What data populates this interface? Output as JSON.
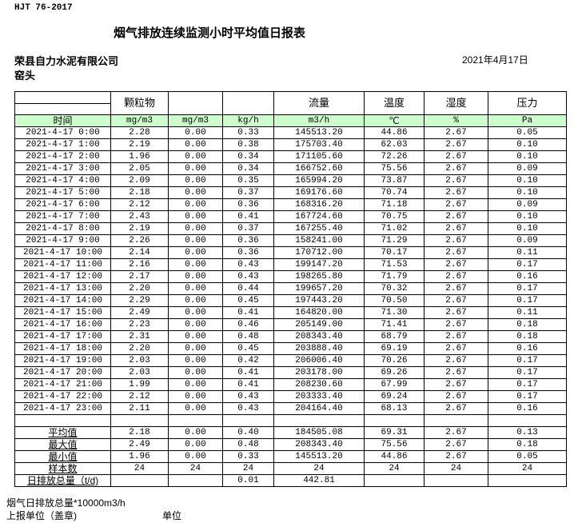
{
  "header": {
    "standard": "HJT  76-2017",
    "title": "烟气排放连续监测小时平均值日报表",
    "company": "荣县自力水泥有限公司",
    "date": "2021年4月17日",
    "location": "窑头"
  },
  "table": {
    "header_row1": [
      "",
      "颗粒物",
      "",
      "",
      "流量",
      "温度",
      "湿度",
      "压力"
    ],
    "header_row2": [
      "时间",
      "mg/m3",
      "mg/m3",
      "kg/h",
      "m3/h",
      "℃",
      "%",
      "Pa"
    ],
    "rows": [
      [
        "2021-4-17 0:00",
        "2.28",
        "0.00",
        "0.33",
        "145513.20",
        "44.86",
        "2.67",
        "0.05"
      ],
      [
        "2021-4-17 1:00",
        "2.19",
        "0.00",
        "0.38",
        "175703.40",
        "62.03",
        "2.67",
        "0.10"
      ],
      [
        "2021-4-17 2:00",
        "1.96",
        "0.00",
        "0.34",
        "171105.60",
        "72.26",
        "2.67",
        "0.10"
      ],
      [
        "2021-4-17 3:00",
        "2.05",
        "0.00",
        "0.34",
        "166752.60",
        "75.56",
        "2.67",
        "0.09"
      ],
      [
        "2021-4-17 4:00",
        "2.09",
        "0.00",
        "0.35",
        "165994.20",
        "73.87",
        "2.67",
        "0.10"
      ],
      [
        "2021-4-17 5:00",
        "2.18",
        "0.00",
        "0.37",
        "169176.60",
        "70.74",
        "2.67",
        "0.10"
      ],
      [
        "2021-4-17 6:00",
        "2.12",
        "0.00",
        "0.36",
        "168316.20",
        "71.18",
        "2.67",
        "0.09"
      ],
      [
        "2021-4-17 7:00",
        "2.43",
        "0.00",
        "0.41",
        "167724.60",
        "70.75",
        "2.67",
        "0.10"
      ],
      [
        "2021-4-17 8:00",
        "2.19",
        "0.00",
        "0.37",
        "167255.40",
        "71.02",
        "2.67",
        "0.10"
      ],
      [
        "2021-4-17 9:00",
        "2.26",
        "0.00",
        "0.36",
        "158241.00",
        "71.29",
        "2.67",
        "0.09"
      ],
      [
        "2021-4-17 10:00",
        "2.14",
        "0.00",
        "0.36",
        "170712.00",
        "70.17",
        "2.67",
        "0.11"
      ],
      [
        "2021-4-17 11:00",
        "2.16",
        "0.00",
        "0.43",
        "199147.20",
        "71.53",
        "2.67",
        "0.17"
      ],
      [
        "2021-4-17 12:00",
        "2.17",
        "0.00",
        "0.43",
        "198265.80",
        "71.79",
        "2.67",
        "0.16"
      ],
      [
        "2021-4-17 13:00",
        "2.20",
        "0.00",
        "0.44",
        "199657.20",
        "70.32",
        "2.67",
        "0.17"
      ],
      [
        "2021-4-17 14:00",
        "2.29",
        "0.00",
        "0.45",
        "197443.20",
        "70.50",
        "2.67",
        "0.17"
      ],
      [
        "2021-4-17 15:00",
        "2.49",
        "0.00",
        "0.41",
        "164820.00",
        "71.30",
        "2.67",
        "0.11"
      ],
      [
        "2021-4-17 16:00",
        "2.23",
        "0.00",
        "0.46",
        "205149.00",
        "71.41",
        "2.67",
        "0.18"
      ],
      [
        "2021-4-17 17:00",
        "2.31",
        "0.00",
        "0.48",
        "208343.40",
        "68.79",
        "2.67",
        "0.18"
      ],
      [
        "2021-4-17 18:00",
        "2.20",
        "0.00",
        "0.45",
        "203888.40",
        "69.19",
        "2.67",
        "0.16"
      ],
      [
        "2021-4-17 19:00",
        "2.03",
        "0.00",
        "0.42",
        "206006.40",
        "70.26",
        "2.67",
        "0.17"
      ],
      [
        "2021-4-17 20:00",
        "2.03",
        "0.00",
        "0.41",
        "203178.00",
        "69.26",
        "2.67",
        "0.17"
      ],
      [
        "2021-4-17 21:00",
        "1.99",
        "0.00",
        "0.41",
        "208230.60",
        "67.99",
        "2.67",
        "0.17"
      ],
      [
        "2021-4-17 22:00",
        "2.12",
        "0.00",
        "0.43",
        "203333.40",
        "69.24",
        "2.67",
        "0.17"
      ],
      [
        "2021-4-17 23:00",
        "2.11",
        "0.00",
        "0.43",
        "204164.40",
        "68.13",
        "2.67",
        "0.16"
      ]
    ],
    "summary": [
      [
        "平均值",
        "2.18",
        "0.00",
        "0.40",
        "184505.08",
        "69.31",
        "2.67",
        "0.13"
      ],
      [
        "最大值",
        "2.49",
        "0.00",
        "0.48",
        "208343.40",
        "75.56",
        "2.67",
        "0.18"
      ],
      [
        "最小值",
        "1.96",
        "0.00",
        "0.33",
        "145513.20",
        "44.86",
        "2.67",
        "0.05"
      ],
      [
        "样本数",
        "24",
        "24",
        "24",
        "24",
        "24",
        "24",
        "24"
      ],
      [
        "日排放总量（t/d)",
        "",
        "",
        "0.01",
        "442.81",
        "",
        "",
        ""
      ]
    ]
  },
  "footer": {
    "note": "烟气日排放总量*10000m3/h",
    "reporter": "上报单位（盖章)",
    "unit": "单位"
  },
  "colors": {
    "header_fill": "#ccffcc"
  }
}
